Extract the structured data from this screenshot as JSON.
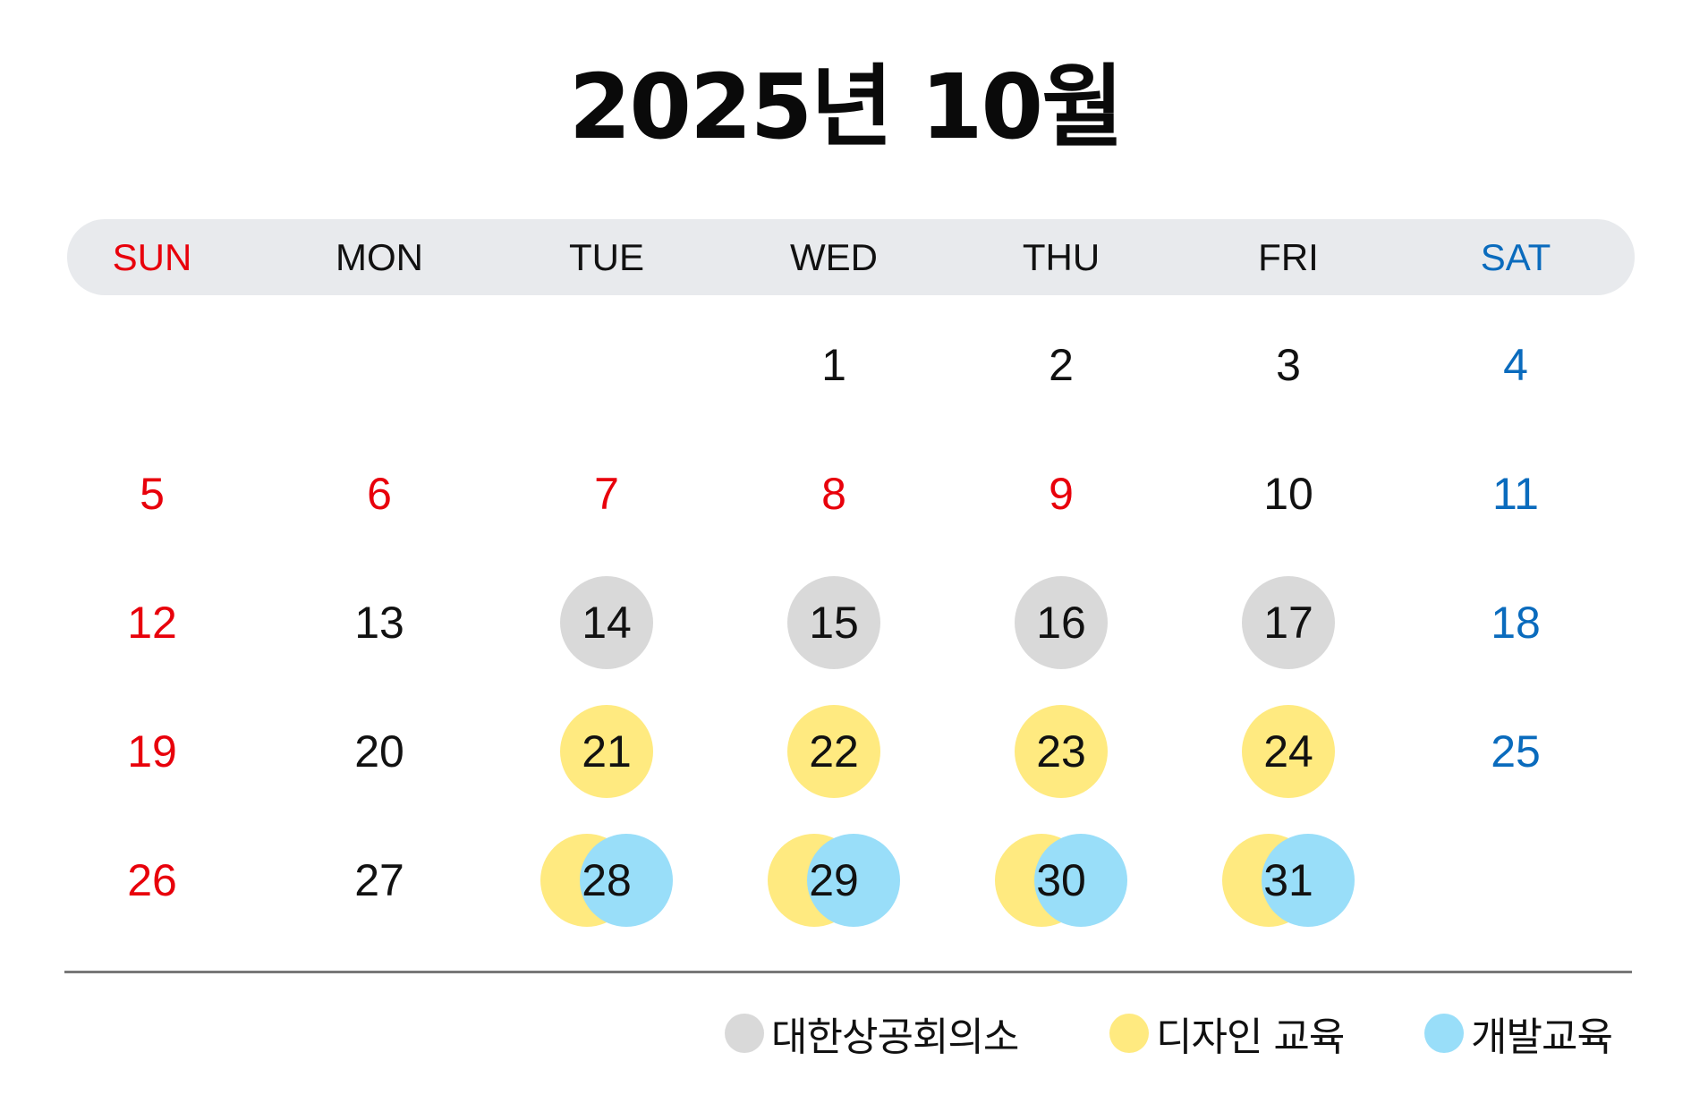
{
  "title": "2025년 10월",
  "colors": {
    "sunday": "#e8000b",
    "saturday": "#0a6bbd",
    "weekday": "#111111",
    "header_bar": "#e8eaed",
    "gray_event": "#d9d9d9",
    "yellow_event": "#ffea80",
    "blue_event": "#99def9"
  },
  "weekdays": [
    {
      "label": "SUN",
      "color": "#e8000b"
    },
    {
      "label": "MON",
      "color": "#111111"
    },
    {
      "label": "TUE",
      "color": "#111111"
    },
    {
      "label": "WED",
      "color": "#111111"
    },
    {
      "label": "THU",
      "color": "#111111"
    },
    {
      "label": "FRI",
      "color": "#111111"
    },
    {
      "label": "SAT",
      "color": "#0a6bbd"
    }
  ],
  "weeks": [
    [
      null,
      null,
      null,
      {
        "d": "1"
      },
      {
        "d": "2"
      },
      {
        "d": "3"
      },
      {
        "d": "4",
        "color": "#0a6bbd"
      }
    ],
    [
      {
        "d": "5",
        "color": "#e8000b"
      },
      {
        "d": "6",
        "color": "#e8000b"
      },
      {
        "d": "7",
        "color": "#e8000b"
      },
      {
        "d": "8",
        "color": "#e8000b"
      },
      {
        "d": "9",
        "color": "#e8000b"
      },
      {
        "d": "10"
      },
      {
        "d": "11",
        "color": "#0a6bbd"
      }
    ],
    [
      {
        "d": "12",
        "color": "#e8000b"
      },
      {
        "d": "13"
      },
      {
        "d": "14",
        "events": [
          "gray"
        ]
      },
      {
        "d": "15",
        "events": [
          "gray"
        ]
      },
      {
        "d": "16",
        "events": [
          "gray"
        ]
      },
      {
        "d": "17",
        "events": [
          "gray"
        ]
      },
      {
        "d": "18",
        "color": "#0a6bbd"
      }
    ],
    [
      {
        "d": "19",
        "color": "#e8000b"
      },
      {
        "d": "20"
      },
      {
        "d": "21",
        "events": [
          "yellow"
        ]
      },
      {
        "d": "22",
        "events": [
          "yellow"
        ]
      },
      {
        "d": "23",
        "events": [
          "yellow"
        ]
      },
      {
        "d": "24",
        "events": [
          "yellow"
        ]
      },
      {
        "d": "25",
        "color": "#0a6bbd"
      }
    ],
    [
      {
        "d": "26",
        "color": "#e8000b"
      },
      {
        "d": "27"
      },
      {
        "d": "28",
        "events": [
          "yellow",
          "blue"
        ]
      },
      {
        "d": "29",
        "events": [
          "yellow",
          "blue"
        ]
      },
      {
        "d": "30",
        "events": [
          "yellow",
          "blue"
        ]
      },
      {
        "d": "31",
        "events": [
          "yellow",
          "blue"
        ]
      },
      null
    ]
  ],
  "legend": [
    {
      "label": "대한상공회의소",
      "color": "#d9d9d9"
    },
    {
      "label": "디자인 교육",
      "color": "#ffea80"
    },
    {
      "label": "개발교육",
      "color": "#99def9"
    }
  ]
}
